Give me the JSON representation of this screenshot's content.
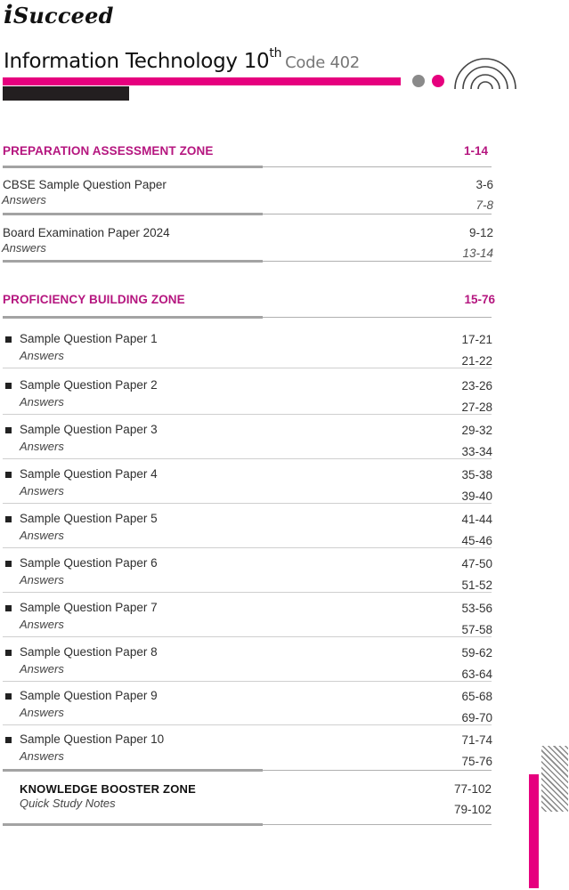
{
  "brand": {
    "logo_i": "i",
    "logo_rest": "Succeed"
  },
  "header": {
    "title": "Information Technology 10",
    "title_sup": "th",
    "code": "Code 402",
    "colors": {
      "accent": "#e6007e",
      "dark_bar": "#231f20",
      "dot_gray": "#8a8a8a"
    }
  },
  "sections": [
    {
      "title": "PREPARATION ASSESSMENT ZONE",
      "pages": "1-14",
      "entries": [
        {
          "title": "CBSE Sample Question Paper",
          "pages": "3-6",
          "sub": "Answers",
          "sub_pages": "7-8"
        },
        {
          "title": "Board Examination Paper 2024",
          "pages": "9-12",
          "sub": "Answers",
          "sub_pages": "13-14"
        }
      ]
    },
    {
      "title": "PROFICIENCY BUILDING ZONE",
      "pages": "15-76",
      "entries": [
        {
          "title": "Sample Question Paper 1",
          "pages": "17-21",
          "sub": "Answers",
          "sub_pages": "21-22"
        },
        {
          "title": "Sample Question Paper 2",
          "pages": "23-26",
          "sub": "Answers",
          "sub_pages": "27-28"
        },
        {
          "title": "Sample Question Paper 3",
          "pages": "29-32",
          "sub": "Answers",
          "sub_pages": "33-34"
        },
        {
          "title": "Sample Question Paper 4",
          "pages": "35-38",
          "sub": "Answers",
          "sub_pages": "39-40"
        },
        {
          "title": "Sample Question Paper 5",
          "pages": "41-44",
          "sub": "Answers",
          "sub_pages": "45-46"
        },
        {
          "title": "Sample Question Paper 6",
          "pages": "47-50",
          "sub": "Answers",
          "sub_pages": "51-52"
        },
        {
          "title": "Sample Question Paper 7",
          "pages": "53-56",
          "sub": "Answers",
          "sub_pages": "57-58"
        },
        {
          "title": "Sample Question Paper 8",
          "pages": "59-62",
          "sub": "Answers",
          "sub_pages": "63-64"
        },
        {
          "title": "Sample Question Paper 9",
          "pages": "65-68",
          "sub": "Answers",
          "sub_pages": "69-70"
        },
        {
          "title": "Sample Question Paper 10",
          "pages": "71-74",
          "sub": "Answers",
          "sub_pages": "75-76"
        }
      ]
    },
    {
      "title": "KNOWLEDGE BOOSTER ZONE",
      "pages": "77-102",
      "sub": "Quick Study Notes",
      "sub_pages": "79-102"
    }
  ]
}
